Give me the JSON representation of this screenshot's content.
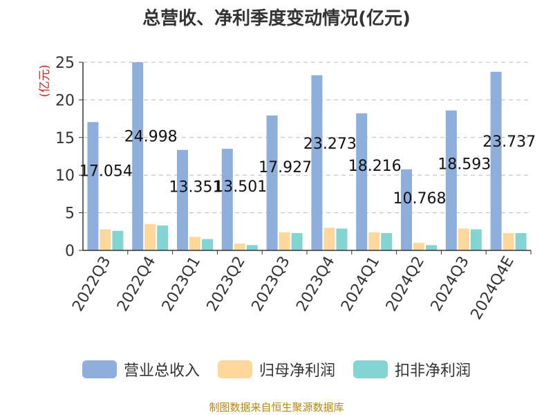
{
  "chart_data": {
    "type": "bar",
    "title": "总营收、净利季度变动情况(亿元)",
    "ylabel": "(亿元)",
    "ylim": [
      0,
      25
    ],
    "yticks": [
      0,
      5,
      10,
      15,
      20,
      25
    ],
    "grid": true,
    "legend_position": "bottom",
    "categories": [
      "2022Q3",
      "2022Q4",
      "2023Q1",
      "2023Q2",
      "2023Q3",
      "2023Q4",
      "2024Q1",
      "2024Q2",
      "2024Q3",
      "2024Q4E"
    ],
    "series": [
      {
        "name": "营业总收入",
        "color": "#8eaedb",
        "values": [
          17.054,
          24.998,
          13.351,
          13.501,
          17.927,
          23.273,
          18.216,
          10.768,
          18.593,
          23.737
        ],
        "labels": [
          "17.054",
          "24.998",
          "13.351",
          "13.501",
          "17.927",
          "23.273",
          "18.216",
          "10.768",
          "18.593",
          "23.737"
        ]
      },
      {
        "name": "归母净利润",
        "color": "#fdd89a",
        "values": [
          2.8,
          3.5,
          1.8,
          0.9,
          2.4,
          3.0,
          2.4,
          1.0,
          2.9,
          2.3
        ]
      },
      {
        "name": "扣非净利润",
        "color": "#85d4d4",
        "values": [
          2.6,
          3.3,
          1.5,
          0.7,
          2.3,
          2.9,
          2.3,
          0.7,
          2.8,
          2.3
        ]
      }
    ]
  },
  "source_text": "制图数据来自恒生聚源数据库"
}
